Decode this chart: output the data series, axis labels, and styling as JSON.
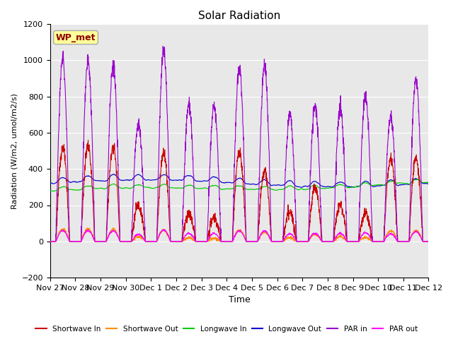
{
  "title": "Solar Radiation",
  "xlabel": "Time",
  "ylabel": "Radiation (W/m2, umol/m2/s)",
  "ylim": [
    -200,
    1200
  ],
  "xlim": [
    0,
    360
  ],
  "x_tick_labels": [
    "Nov 27",
    "Nov 28",
    "Nov 29",
    "Nov 30",
    "Dec 1",
    "Dec 2",
    "Dec 3",
    "Dec 4",
    "Dec 5",
    "Dec 6",
    "Dec 7",
    "Dec 8",
    "Dec 9",
    "Dec 10",
    "Dec 11",
    "Dec 12"
  ],
  "x_tick_positions": [
    0,
    24,
    48,
    72,
    96,
    120,
    144,
    168,
    192,
    216,
    240,
    264,
    288,
    312,
    336,
    360
  ],
  "yticks": [
    -200,
    0,
    200,
    400,
    600,
    800,
    1000,
    1200
  ],
  "legend_label": "WP_met",
  "legend_box_color": "#FFFF99",
  "legend_text_color": "#8B0000",
  "colors": {
    "shortwave_in": "#CC0000",
    "shortwave_out": "#FF8C00",
    "longwave_in": "#00CC00",
    "longwave_out": "#0000CC",
    "par_in": "#9900CC",
    "par_out": "#FF00FF"
  },
  "bg_color": "#E8E8E8",
  "grid_color": "#FFFFFF",
  "sw_peaks": [
    520,
    530,
    530,
    200,
    490,
    150,
    130,
    490,
    390,
    160,
    300,
    200,
    160,
    460,
    460
  ],
  "par_peaks": [
    1000,
    1000,
    980,
    650,
    1050,
    760,
    750,
    960,
    960,
    700,
    750,
    740,
    800,
    700,
    900
  ],
  "lw_out_base": 320,
  "lw_in_base": 270
}
